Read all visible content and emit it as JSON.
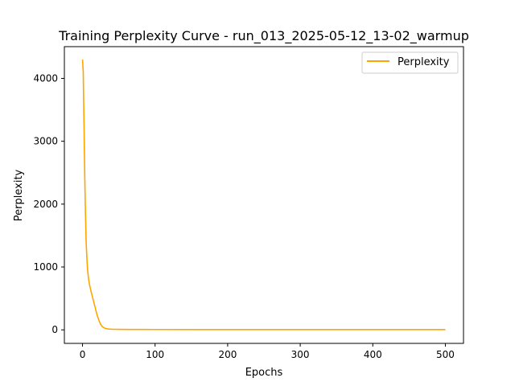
{
  "chart_data": {
    "type": "line",
    "title": "Training Perplexity Curve - run_013_2025-05-12_13-02_warmup",
    "xlabel": "Epochs",
    "ylabel": "Perplexity",
    "xlim": [
      -25,
      525
    ],
    "ylim": [
      -215,
      4505
    ],
    "xticks": [
      0,
      100,
      200,
      300,
      400,
      500
    ],
    "yticks": [
      0,
      1000,
      2000,
      3000,
      4000
    ],
    "grid": false,
    "legend_position": "top-right",
    "series": [
      {
        "name": "Perplexity",
        "color": "#ffa500",
        "x": [
          0,
          1,
          2,
          3,
          4,
          5,
          6,
          7,
          8,
          9,
          10,
          12,
          14,
          16,
          18,
          20,
          22,
          24,
          26,
          28,
          30,
          32,
          35,
          38,
          42,
          46,
          50,
          60,
          80,
          100,
          150,
          200,
          300,
          400,
          500
        ],
        "y": [
          4300,
          4100,
          3300,
          2500,
          1900,
          1400,
          1150,
          950,
          850,
          760,
          700,
          600,
          510,
          420,
          330,
          240,
          170,
          110,
          70,
          45,
          30,
          22,
          15,
          12,
          10,
          9,
          8,
          7,
          6,
          5.5,
          5,
          5,
          5,
          5,
          5
        ]
      }
    ]
  }
}
